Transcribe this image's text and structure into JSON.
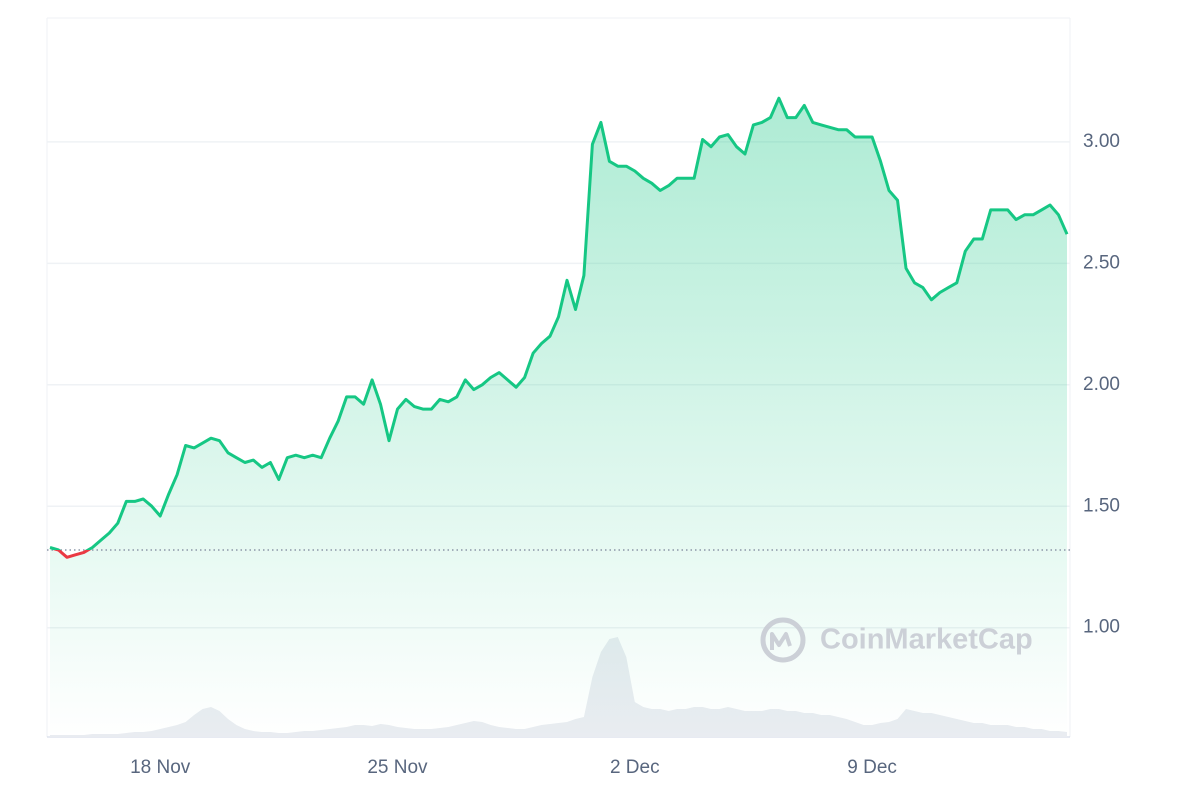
{
  "chart_data": {
    "type": "line",
    "categories": [
      null,
      null,
      null,
      null,
      null,
      null,
      null,
      null,
      null,
      null,
      null,
      null,
      null,
      "18 Nov",
      null,
      null,
      null,
      null,
      null,
      null,
      null,
      null,
      null,
      null,
      null,
      null,
      null,
      null,
      null,
      null,
      null,
      null,
      null,
      null,
      null,
      null,
      null,
      null,
      null,
      null,
      null,
      "25 Nov",
      null,
      null,
      null,
      null,
      null,
      null,
      null,
      null,
      null,
      null,
      null,
      null,
      null,
      null,
      null,
      null,
      null,
      null,
      null,
      null,
      null,
      null,
      null,
      null,
      null,
      null,
      null,
      "2 Dec",
      null,
      null,
      null,
      null,
      null,
      null,
      null,
      null,
      null,
      null,
      null,
      null,
      null,
      null,
      null,
      null,
      null,
      null,
      null,
      null,
      null,
      null,
      null,
      null,
      null,
      null,
      null,
      "9 Dec",
      null,
      null,
      null,
      null,
      null,
      null,
      null,
      null,
      null,
      null,
      null,
      null,
      null,
      null,
      null,
      null,
      null,
      null,
      null,
      null,
      null,
      null,
      null
    ],
    "series": [
      {
        "color": "#16c784",
        "values": [
          1.33,
          1.32,
          1.29,
          1.3,
          1.31,
          1.33,
          1.36,
          1.39,
          1.43,
          1.52,
          1.52,
          1.53,
          1.5,
          1.46,
          1.55,
          1.63,
          1.75,
          1.74,
          1.76,
          1.78,
          1.77,
          1.72,
          1.7,
          1.68,
          1.69,
          1.66,
          1.68,
          1.61,
          1.7,
          1.71,
          1.7,
          1.71,
          1.7,
          1.78,
          1.85,
          1.95,
          1.95,
          1.92,
          2.02,
          1.92,
          1.77,
          1.9,
          1.94,
          1.91,
          1.9,
          1.9,
          1.94,
          1.93,
          1.95,
          2.02,
          1.98,
          2.0,
          2.03,
          2.05,
          2.02,
          1.99,
          2.03,
          2.13,
          2.17,
          2.2,
          2.28,
          2.43,
          2.31,
          2.45,
          2.99,
          3.08,
          2.92,
          2.9,
          2.9,
          2.88,
          2.85,
          2.83,
          2.8,
          2.82,
          2.85,
          2.85,
          2.85,
          3.01,
          2.98,
          3.02,
          3.03,
          2.98,
          2.95,
          3.07,
          3.08,
          3.1,
          3.18,
          3.1,
          3.1,
          3.15,
          3.08,
          3.07,
          3.06,
          3.05,
          3.05,
          3.02,
          3.02,
          3.02,
          2.92,
          2.8,
          2.76,
          2.48,
          2.42,
          2.4,
          2.35,
          2.38,
          2.4,
          2.42,
          2.55,
          2.6,
          2.6,
          2.72,
          2.72,
          2.72,
          2.68,
          2.7,
          2.7,
          2.72,
          2.74,
          2.7,
          2.62
        ]
      }
    ],
    "down_color": "#ea3943",
    "baseline": 1.32,
    "volume": {
      "color": "#e9ecf1",
      "lim": [
        0,
        100
      ],
      "values": [
        2,
        2,
        2,
        2,
        2,
        3,
        3,
        3,
        3,
        4,
        5,
        5,
        6,
        8,
        10,
        12,
        15,
        22,
        28,
        30,
        26,
        18,
        12,
        8,
        6,
        5,
        5,
        4,
        4,
        5,
        6,
        6,
        7,
        8,
        9,
        10,
        12,
        12,
        11,
        13,
        12,
        10,
        9,
        8,
        8,
        8,
        9,
        10,
        12,
        14,
        16,
        15,
        12,
        10,
        9,
        8,
        8,
        10,
        12,
        13,
        14,
        15,
        18,
        20,
        60,
        85,
        98,
        100,
        80,
        35,
        30,
        28,
        28,
        26,
        28,
        28,
        30,
        30,
        28,
        28,
        30,
        28,
        26,
        26,
        26,
        28,
        28,
        26,
        26,
        24,
        24,
        22,
        22,
        20,
        18,
        15,
        12,
        12,
        14,
        15,
        18,
        28,
        26,
        24,
        24,
        22,
        20,
        18,
        16,
        14,
        14,
        12,
        12,
        12,
        10,
        10,
        8,
        8,
        6,
        6,
        5
      ]
    },
    "ylim": [
      0.55,
      3.51
    ],
    "yticks": [
      {
        "value": 1,
        "label": "1.00"
      },
      {
        "value": 1.5,
        "label": "1.50"
      },
      {
        "value": 2,
        "label": "2.00"
      },
      {
        "value": 2.5,
        "label": "2.50"
      },
      {
        "value": 3,
        "label": "3.00"
      }
    ],
    "grid": true,
    "watermark": "CoinMarketCap"
  }
}
